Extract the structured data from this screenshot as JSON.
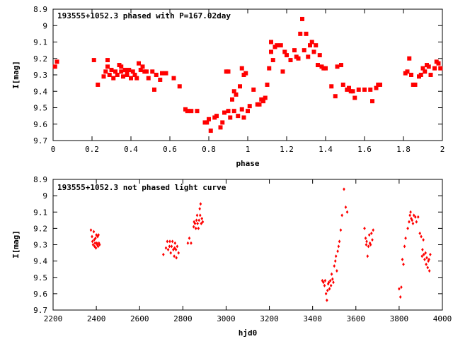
{
  "chart_data": [
    {
      "type": "scatter",
      "title": "193555+1052.3 phased with P=167.02day",
      "xlabel": "phase",
      "ylabel": "I[mag]",
      "xlim": [
        0,
        2
      ],
      "ylim": [
        9.7,
        8.9
      ],
      "y_inverted": true,
      "xticks": [
        "0",
        "0.2",
        "0.4",
        "0.6",
        "0.8",
        "1",
        "1.2",
        "1.4",
        "1.6",
        "1.8",
        "2"
      ],
      "yticks": [
        "8.9",
        "9",
        "9.1",
        "9.2",
        "9.3",
        "9.4",
        "9.5",
        "9.6",
        "9.7"
      ],
      "marker_color": "#ff0000",
      "grid": false,
      "series": [
        {
          "points": [
            [
              0.01,
              9.25
            ],
            [
              0.02,
              9.22
            ],
            [
              0.21,
              9.21
            ],
            [
              0.23,
              9.36
            ],
            [
              0.26,
              9.31
            ],
            [
              0.27,
              9.28
            ],
            [
              0.28,
              9.21
            ],
            [
              0.28,
              9.25
            ],
            [
              0.29,
              9.3
            ],
            [
              0.3,
              9.27
            ],
            [
              0.31,
              9.32
            ],
            [
              0.32,
              9.28
            ],
            [
              0.33,
              9.3
            ],
            [
              0.34,
              9.24
            ],
            [
              0.35,
              9.25
            ],
            [
              0.35,
              9.28
            ],
            [
              0.36,
              9.31
            ],
            [
              0.37,
              9.27
            ],
            [
              0.38,
              9.29
            ],
            [
              0.38,
              9.3
            ],
            [
              0.39,
              9.27
            ],
            [
              0.4,
              9.32
            ],
            [
              0.41,
              9.28
            ],
            [
              0.42,
              9.3
            ],
            [
              0.43,
              9.32
            ],
            [
              0.44,
              9.23
            ],
            [
              0.45,
              9.27
            ],
            [
              0.46,
              9.25
            ],
            [
              0.47,
              9.28
            ],
            [
              0.48,
              9.28
            ],
            [
              0.49,
              9.32
            ],
            [
              0.51,
              9.28
            ],
            [
              0.52,
              9.39
            ],
            [
              0.53,
              9.3
            ],
            [
              0.55,
              9.33
            ],
            [
              0.56,
              9.29
            ],
            [
              0.58,
              9.29
            ],
            [
              0.62,
              9.32
            ],
            [
              0.65,
              9.37
            ],
            [
              0.68,
              9.51
            ],
            [
              0.69,
              9.52
            ],
            [
              0.71,
              9.52
            ],
            [
              0.74,
              9.52
            ],
            [
              0.78,
              9.59
            ],
            [
              0.79,
              9.59
            ],
            [
              0.8,
              9.57
            ],
            [
              0.81,
              9.64
            ],
            [
              0.83,
              9.56
            ],
            [
              0.84,
              9.55
            ],
            [
              0.86,
              9.62
            ],
            [
              0.87,
              9.59
            ],
            [
              0.88,
              9.53
            ],
            [
              0.89,
              9.28
            ],
            [
              0.9,
              9.52
            ],
            [
              0.9,
              9.28
            ],
            [
              0.91,
              9.56
            ],
            [
              0.92,
              9.45
            ],
            [
              0.93,
              9.4
            ],
            [
              0.93,
              9.52
            ],
            [
              0.94,
              9.42
            ],
            [
              0.95,
              9.55
            ],
            [
              0.96,
              9.37
            ],
            [
              0.97,
              9.51
            ],
            [
              0.97,
              9.26
            ],
            [
              0.98,
              9.3
            ],
            [
              0.98,
              9.56
            ],
            [
              0.99,
              9.29
            ],
            [
              1.0,
              9.52
            ],
            [
              1.01,
              9.49
            ],
            [
              1.03,
              9.39
            ],
            [
              1.05,
              9.48
            ],
            [
              1.06,
              9.48
            ],
            [
              1.07,
              9.45
            ],
            [
              1.08,
              9.46
            ],
            [
              1.09,
              9.44
            ],
            [
              1.1,
              9.36
            ],
            [
              1.11,
              9.26
            ],
            [
              1.12,
              9.1
            ],
            [
              1.12,
              9.16
            ],
            [
              1.13,
              9.21
            ],
            [
              1.14,
              9.13
            ],
            [
              1.15,
              9.12
            ],
            [
              1.17,
              9.12
            ],
            [
              1.18,
              9.28
            ],
            [
              1.19,
              9.16
            ],
            [
              1.2,
              9.18
            ],
            [
              1.22,
              9.21
            ],
            [
              1.24,
              9.15
            ],
            [
              1.25,
              9.19
            ],
            [
              1.26,
              9.2
            ],
            [
              1.27,
              9.05
            ],
            [
              1.28,
              8.96
            ],
            [
              1.29,
              9.15
            ],
            [
              1.3,
              9.05
            ],
            [
              1.31,
              9.19
            ],
            [
              1.32,
              9.12
            ],
            [
              1.33,
              9.1
            ],
            [
              1.34,
              9.16
            ],
            [
              1.35,
              9.12
            ],
            [
              1.36,
              9.24
            ],
            [
              1.37,
              9.18
            ],
            [
              1.38,
              9.25
            ],
            [
              1.39,
              9.26
            ],
            [
              1.4,
              9.26
            ],
            [
              1.43,
              9.37
            ],
            [
              1.45,
              9.43
            ],
            [
              1.46,
              9.25
            ],
            [
              1.48,
              9.24
            ],
            [
              1.49,
              9.36
            ],
            [
              1.51,
              9.39
            ],
            [
              1.52,
              9.38
            ],
            [
              1.53,
              9.4
            ],
            [
              1.54,
              9.4
            ],
            [
              1.55,
              9.44
            ],
            [
              1.57,
              9.39
            ],
            [
              1.6,
              9.39
            ],
            [
              1.63,
              9.39
            ],
            [
              1.64,
              9.46
            ],
            [
              1.66,
              9.38
            ],
            [
              1.67,
              9.36
            ],
            [
              1.68,
              9.36
            ],
            [
              1.81,
              9.29
            ],
            [
              1.82,
              9.28
            ],
            [
              1.83,
              9.2
            ],
            [
              1.84,
              9.3
            ],
            [
              1.85,
              9.36
            ],
            [
              1.86,
              9.36
            ],
            [
              1.88,
              9.31
            ],
            [
              1.89,
              9.3
            ],
            [
              1.9,
              9.26
            ],
            [
              1.91,
              9.28
            ],
            [
              1.92,
              9.24
            ],
            [
              1.93,
              9.25
            ],
            [
              1.94,
              9.3
            ],
            [
              1.96,
              9.26
            ],
            [
              1.97,
              9.22
            ],
            [
              1.98,
              9.23
            ],
            [
              1.99,
              9.26
            ]
          ]
        }
      ]
    },
    {
      "type": "scatter",
      "title": "193555+1052.3 not phased light curve",
      "xlabel": "hjd0",
      "ylabel": "I[mag]",
      "xlim": [
        2200,
        4000
      ],
      "ylim": [
        9.7,
        8.9
      ],
      "y_inverted": true,
      "xticks": [
        "2200",
        "2400",
        "2600",
        "2800",
        "3000",
        "3200",
        "3400",
        "3600",
        "3800",
        "4000"
      ],
      "yticks": [
        "8.9",
        "9",
        "9.1",
        "9.2",
        "9.3",
        "9.4",
        "9.5",
        "9.6",
        "9.7"
      ],
      "marker_color": "#ff0000",
      "grid": false,
      "series": [
        {
          "points": [
            [
              2375,
              9.21
            ],
            [
              2380,
              9.25
            ],
            [
              2382,
              9.28
            ],
            [
              2385,
              9.3
            ],
            [
              2388,
              9.22
            ],
            [
              2390,
              9.27
            ],
            [
              2392,
              9.31
            ],
            [
              2394,
              9.29
            ],
            [
              2396,
              9.26
            ],
            [
              2398,
              9.32
            ],
            [
              2400,
              9.24
            ],
            [
              2402,
              9.29
            ],
            [
              2404,
              9.3
            ],
            [
              2406,
              9.25
            ],
            [
              2408,
              9.31
            ],
            [
              2410,
              9.24
            ],
            [
              2412,
              9.29
            ],
            [
              2415,
              9.3
            ],
            [
              2710,
              9.36
            ],
            [
              2722,
              9.32
            ],
            [
              2728,
              9.28
            ],
            [
              2732,
              9.33
            ],
            [
              2738,
              9.31
            ],
            [
              2740,
              9.28
            ],
            [
              2744,
              9.35
            ],
            [
              2748,
              9.31
            ],
            [
              2752,
              9.28
            ],
            [
              2756,
              9.33
            ],
            [
              2760,
              9.37
            ],
            [
              2762,
              9.32
            ],
            [
              2764,
              9.29
            ],
            [
              2768,
              9.33
            ],
            [
              2770,
              9.38
            ],
            [
              2774,
              9.31
            ],
            [
              2780,
              9.35
            ],
            [
              2823,
              9.29
            ],
            [
              2830,
              9.26
            ],
            [
              2838,
              9.29
            ],
            [
              2850,
              9.19
            ],
            [
              2852,
              9.16
            ],
            [
              2856,
              9.17
            ],
            [
              2860,
              9.2
            ],
            [
              2863,
              9.15
            ],
            [
              2866,
              9.12
            ],
            [
              2868,
              9.17
            ],
            [
              2872,
              9.2
            ],
            [
              2875,
              9.15
            ],
            [
              2878,
              9.08
            ],
            [
              2880,
              9.12
            ],
            [
              2882,
              9.05
            ],
            [
              2885,
              9.17
            ],
            [
              2888,
              9.14
            ],
            [
              2892,
              9.16
            ],
            [
              3445,
              9.52
            ],
            [
              3450,
              9.53
            ],
            [
              3455,
              9.55
            ],
            [
              3458,
              9.52
            ],
            [
              3462,
              9.6
            ],
            [
              3466,
              9.64
            ],
            [
              3469,
              9.58
            ],
            [
              3472,
              9.54
            ],
            [
              3475,
              9.53
            ],
            [
              3478,
              9.57
            ],
            [
              3482,
              9.52
            ],
            [
              3485,
              9.55
            ],
            [
              3488,
              9.48
            ],
            [
              3492,
              9.51
            ],
            [
              3496,
              9.53
            ],
            [
              3500,
              9.43
            ],
            [
              3505,
              9.4
            ],
            [
              3508,
              9.37
            ],
            [
              3512,
              9.46
            ],
            [
              3516,
              9.34
            ],
            [
              3520,
              9.31
            ],
            [
              3524,
              9.28
            ],
            [
              3530,
              9.21
            ],
            [
              3536,
              9.12
            ],
            [
              3545,
              8.96
            ],
            [
              3553,
              9.07
            ],
            [
              3560,
              9.1
            ],
            [
              3640,
              9.2
            ],
            [
              3645,
              9.26
            ],
            [
              3648,
              9.3
            ],
            [
              3650,
              9.28
            ],
            [
              3654,
              9.37
            ],
            [
              3658,
              9.31
            ],
            [
              3662,
              9.24
            ],
            [
              3665,
              9.29
            ],
            [
              3668,
              9.3
            ],
            [
              3672,
              9.23
            ],
            [
              3676,
              9.27
            ],
            [
              3680,
              9.21
            ],
            [
              3800,
              9.57
            ],
            [
              3806,
              9.62
            ],
            [
              3810,
              9.56
            ],
            [
              3815,
              9.39
            ],
            [
              3820,
              9.42
            ],
            [
              3825,
              9.31
            ],
            [
              3830,
              9.26
            ],
            [
              3840,
              9.2
            ],
            [
              3846,
              9.16
            ],
            [
              3850,
              9.12
            ],
            [
              3853,
              9.1
            ],
            [
              3856,
              9.14
            ],
            [
              3860,
              9.15
            ],
            [
              3864,
              9.17
            ],
            [
              3868,
              9.12
            ],
            [
              3875,
              9.13
            ],
            [
              3880,
              9.16
            ],
            [
              3888,
              9.13
            ],
            [
              3896,
              9.23
            ],
            [
              3902,
              9.25
            ],
            [
              3906,
              9.37
            ],
            [
              3908,
              9.33
            ],
            [
              3912,
              9.27
            ],
            [
              3914,
              9.36
            ],
            [
              3918,
              9.39
            ],
            [
              3922,
              9.35
            ],
            [
              3925,
              9.42
            ],
            [
              3928,
              9.38
            ],
            [
              3932,
              9.44
            ],
            [
              3935,
              9.4
            ],
            [
              3938,
              9.39
            ],
            [
              3940,
              9.46
            ],
            [
              3944,
              9.36
            ]
          ]
        }
      ]
    }
  ]
}
